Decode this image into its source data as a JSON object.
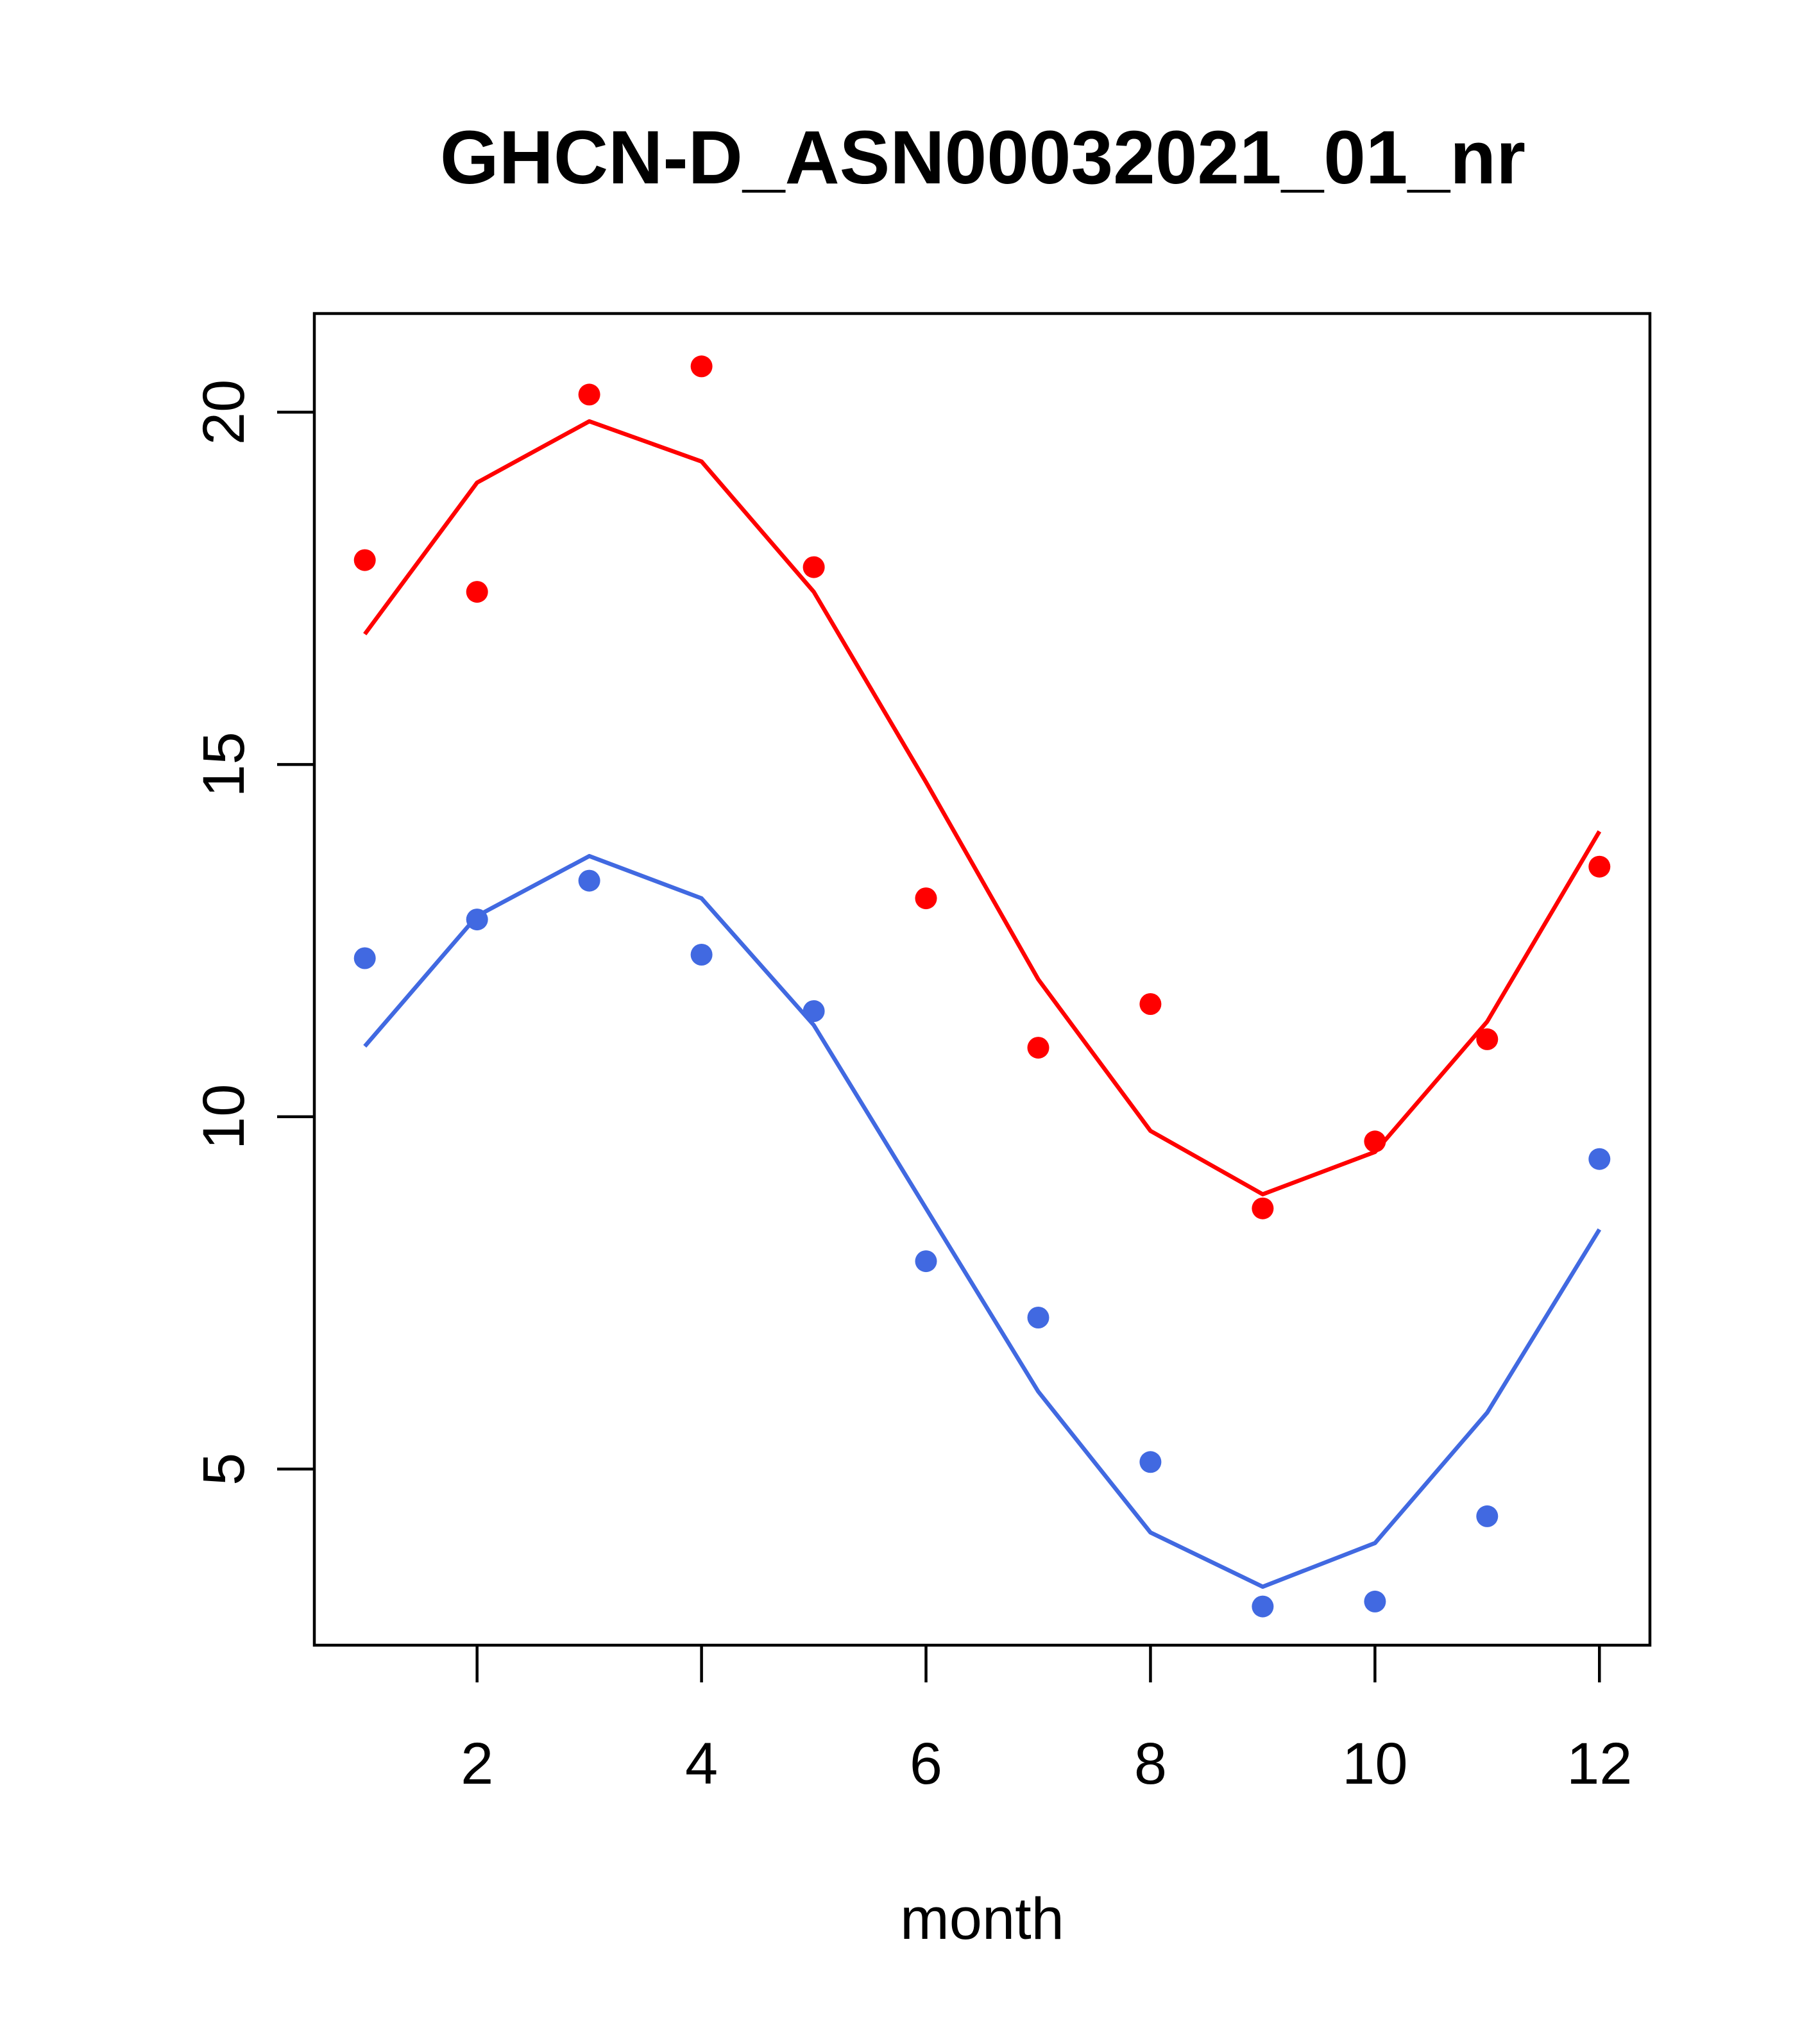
{
  "chart_data": {
    "type": "line",
    "title": "GHCN-D_ASN00032021_01_nr",
    "xlabel": "month",
    "ylabel": "",
    "xlim": [
      0.55,
      12.45
    ],
    "ylim": [
      2.5,
      21.4
    ],
    "x_ticks": [
      2,
      4,
      6,
      8,
      10,
      12
    ],
    "y_ticks": [
      5,
      10,
      15,
      20
    ],
    "grid": false,
    "legend": "none",
    "x": [
      1,
      2,
      3,
      4,
      5,
      6,
      7,
      8,
      9,
      10,
      11,
      12
    ],
    "series": [
      {
        "color": "#ff0000",
        "points": [
          17.9,
          17.45,
          20.25,
          20.65,
          17.8,
          13.1,
          10.98,
          11.6,
          8.7,
          9.65,
          11.1,
          13.55
        ],
        "line": [
          16.85,
          19.0,
          19.87,
          19.3,
          17.45,
          14.75,
          11.95,
          9.8,
          8.9,
          9.5,
          11.35,
          14.05
        ]
      },
      {
        "color": "#4169e1",
        "points": [
          12.25,
          12.8,
          13.35,
          12.3,
          11.5,
          7.95,
          7.15,
          5.1,
          3.05,
          3.12,
          4.33,
          9.4
        ],
        "line": [
          11.0,
          12.85,
          13.7,
          13.1,
          11.3,
          8.7,
          6.1,
          4.1,
          3.33,
          3.95,
          5.8,
          8.4
        ]
      }
    ]
  }
}
